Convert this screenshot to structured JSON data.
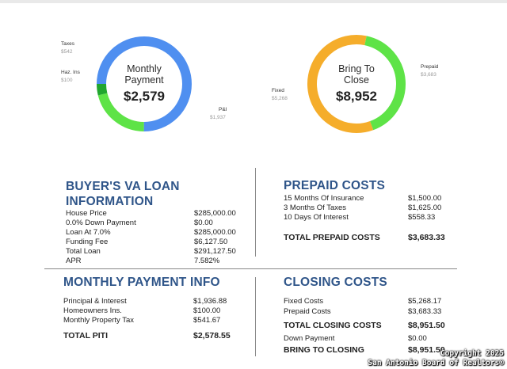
{
  "charts": {
    "monthly_payment": {
      "title_line1": "Monthly",
      "title_line2": "Payment",
      "value": "$2,579"
    },
    "bring_to_close": {
      "title_line1": "Bring To",
      "title_line2": "Close",
      "value": "$8,952"
    }
  },
  "chart_data": [
    {
      "type": "pie",
      "title": "Monthly Payment",
      "total": "$2,579",
      "slices": [
        {
          "name": "P&I",
          "label": "$1,937",
          "value": 1937,
          "color": "#4f8ff0"
        },
        {
          "name": "Taxes",
          "label": "$542",
          "value": 542,
          "color": "#5ee347"
        },
        {
          "name": "Haz. Ins",
          "label": "$100",
          "value": 100,
          "color": "#21a62f"
        }
      ]
    },
    {
      "type": "pie",
      "title": "Bring To Close",
      "total": "$8,952",
      "slices": [
        {
          "name": "Fixed",
          "label": "$5,268",
          "value": 5268,
          "color": "#f5ad2b"
        },
        {
          "name": "Prepaid",
          "label": "$3,683",
          "value": 3683,
          "color": "#5ee347"
        }
      ]
    }
  ],
  "buyer_loan": {
    "heading_line1": "BUYER'S VA LOAN",
    "heading_line2": "INFORMATION",
    "rows": [
      {
        "label": "House Price",
        "value": "$285,000.00"
      },
      {
        "label": "0.0% Down Payment",
        "value": "$0.00"
      },
      {
        "label": "Loan At 7.0%",
        "value": "$285,000.00"
      },
      {
        "label": "Funding Fee",
        "value": "$6,127.50"
      },
      {
        "label": "Total Loan",
        "value": "$291,127.50"
      },
      {
        "label": "APR",
        "value": "7.582%"
      }
    ]
  },
  "prepaid_costs": {
    "heading": "PREPAID COSTS",
    "rows": [
      {
        "label": "15 Months Of Insurance",
        "value": "$1,500.00"
      },
      {
        "label": "3 Months Of Taxes",
        "value": "$1,625.00"
      },
      {
        "label": "10 Days Of Interest",
        "value": "$558.33"
      }
    ],
    "total_label": "TOTAL PREPAID COSTS",
    "total_value": "$3,683.33"
  },
  "monthly_payment_info": {
    "heading": "MONTHLY PAYMENT INFO",
    "rows": [
      {
        "label": "Principal & Interest",
        "value": "$1,936.88"
      },
      {
        "label": "Homeowners Ins.",
        "value": "$100.00"
      },
      {
        "label": "Monthly Property Tax",
        "value": "$541.67"
      }
    ],
    "total_label": "TOTAL PITI",
    "total_value": "$2,578.55"
  },
  "closing_costs": {
    "heading": "CLOSING COSTS",
    "rows": [
      {
        "label": "Fixed Costs",
        "value": "$5,268.17"
      },
      {
        "label": "Prepaid Costs",
        "value": "$3,683.33"
      }
    ],
    "total_label": "TOTAL CLOSING COSTS",
    "total_value": "$8,951.50",
    "down_payment_label": "Down Payment",
    "down_payment_value": "$0.00",
    "bring_label": "BRING TO CLOSING",
    "bring_value": "$8,951.50"
  },
  "footer": {
    "line1": "Copyright 2025",
    "line2": "San Antonio Board of Realtors®"
  }
}
